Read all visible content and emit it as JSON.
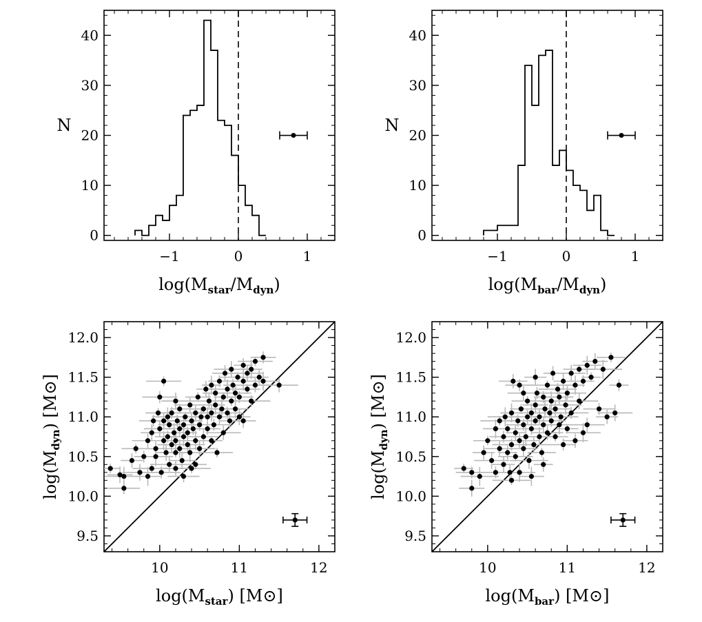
{
  "chart_data": [
    {
      "id": "hist_star",
      "type": "histogram",
      "xlabel": {
        "pre": "log(M",
        "sub1": "star",
        "mid": "/M",
        "sub2": "dyn",
        "post": ")"
      },
      "ylabel": "N",
      "xlim": [
        -1.95,
        1.4
      ],
      "ylim": [
        -1,
        45
      ],
      "xticks": [
        -1,
        0,
        1
      ],
      "xtick_labels": [
        "−1",
        "0",
        "1"
      ],
      "yticks": [
        0,
        10,
        20,
        30,
        40
      ],
      "ytick_labels": [
        "0",
        "10",
        "20",
        "30",
        "40"
      ],
      "bin_width": 0.1,
      "bin_edges_start": -1.5,
      "counts": [
        1,
        0,
        2,
        4,
        3,
        6,
        8,
        24,
        25,
        26,
        43,
        37,
        23,
        22,
        16,
        10,
        6,
        4,
        0
      ],
      "reference_line_x": 0,
      "errorbar": {
        "x": 0.8,
        "y": 20,
        "xerr": 0.2
      }
    },
    {
      "id": "hist_bar",
      "type": "histogram",
      "xlabel": {
        "pre": "log(M",
        "sub1": "bar",
        "mid": "/M",
        "sub2": "dyn",
        "post": ")"
      },
      "ylabel": "N",
      "xlim": [
        -1.95,
        1.4
      ],
      "ylim": [
        -1,
        45
      ],
      "xticks": [
        -1,
        0,
        1
      ],
      "xtick_labels": [
        "−1",
        "0",
        "1"
      ],
      "yticks": [
        0,
        10,
        20,
        30,
        40
      ],
      "ytick_labels": [
        "0",
        "10",
        "20",
        "30",
        "40"
      ],
      "bin_width": 0.1,
      "bin_edges_start": -1.2,
      "counts": [
        1,
        1,
        2,
        2,
        2,
        14,
        34,
        26,
        36,
        37,
        14,
        17,
        13,
        10,
        9,
        5,
        8,
        1,
        0
      ],
      "reference_line_x": 0,
      "errorbar": {
        "x": 0.8,
        "y": 20,
        "xerr": 0.2
      }
    },
    {
      "id": "scatter_star",
      "type": "scatter",
      "xlabel": {
        "pre": "log(M",
        "sub1": "star",
        "mid": ") [M",
        "post": "]"
      },
      "ylabel": {
        "pre": "log(M",
        "sub1": "dyn",
        "mid": ") [M",
        "post": "]"
      },
      "xlim": [
        9.3,
        12.2
      ],
      "ylim": [
        9.3,
        12.2
      ],
      "xticks": [
        10,
        11,
        12
      ],
      "xtick_labels": [
        "10",
        "11",
        "12"
      ],
      "yticks": [
        9.5,
        10.0,
        10.5,
        11.0,
        11.5,
        12.0
      ],
      "ytick_labels": [
        "9.5",
        "10.0",
        "10.5",
        "11.0",
        "11.5",
        "12.0"
      ],
      "one_to_one_line": true,
      "errorbar_sample": {
        "x": 11.7,
        "y": 9.7,
        "xerr": 0.15,
        "yerr": 0.08
      },
      "points": [
        [
          9.38,
          10.35
        ],
        [
          9.5,
          10.27
        ],
        [
          9.55,
          10.1
        ],
        [
          9.55,
          10.25
        ],
        [
          9.65,
          10.45
        ],
        [
          9.7,
          10.6
        ],
        [
          9.75,
          10.3
        ],
        [
          9.8,
          10.5
        ],
        [
          9.85,
          10.25
        ],
        [
          9.85,
          10.7
        ],
        [
          9.9,
          10.35
        ],
        [
          9.9,
          10.8
        ],
        [
          9.92,
          10.95
        ],
        [
          9.95,
          10.5
        ],
        [
          9.95,
          10.6
        ],
        [
          9.98,
          11.05
        ],
        [
          10.0,
          10.85
        ],
        [
          10.02,
          10.3
        ],
        [
          10.05,
          10.7
        ],
        [
          10.05,
          10.95
        ],
        [
          10.05,
          11.45
        ],
        [
          10.08,
          10.55
        ],
        [
          10.1,
          10.75
        ],
        [
          10.1,
          11.0
        ],
        [
          10.12,
          10.4
        ],
        [
          10.12,
          10.9
        ],
        [
          10.15,
          10.65
        ],
        [
          10.15,
          11.05
        ],
        [
          10.18,
          10.8
        ],
        [
          10.2,
          10.35
        ],
        [
          10.2,
          10.55
        ],
        [
          10.2,
          10.7
        ],
        [
          10.22,
          10.95
        ],
        [
          10.25,
          10.6
        ],
        [
          10.25,
          10.85
        ],
        [
          10.25,
          11.1
        ],
        [
          10.28,
          10.45
        ],
        [
          10.3,
          10.25
        ],
        [
          10.3,
          10.75
        ],
        [
          10.3,
          10.9
        ],
        [
          10.32,
          11.0
        ],
        [
          10.35,
          10.65
        ],
        [
          10.35,
          10.8
        ],
        [
          10.38,
          10.55
        ],
        [
          10.38,
          11.15
        ],
        [
          10.4,
          10.35
        ],
        [
          10.4,
          10.95
        ],
        [
          10.42,
          10.85
        ],
        [
          10.45,
          10.7
        ],
        [
          10.45,
          11.05
        ],
        [
          10.48,
          11.25
        ],
        [
          10.5,
          10.6
        ],
        [
          10.5,
          10.9
        ],
        [
          10.52,
          11.0
        ],
        [
          10.55,
          10.75
        ],
        [
          10.55,
          11.1
        ],
        [
          10.58,
          11.35
        ],
        [
          10.6,
          10.85
        ],
        [
          10.6,
          11.0
        ],
        [
          10.62,
          11.2
        ],
        [
          10.65,
          10.7
        ],
        [
          10.65,
          11.05
        ],
        [
          10.68,
          10.9
        ],
        [
          10.7,
          11.15
        ],
        [
          10.7,
          11.3
        ],
        [
          10.72,
          10.55
        ],
        [
          10.75,
          11.0
        ],
        [
          10.75,
          11.45
        ],
        [
          10.78,
          11.1
        ],
        [
          10.8,
          10.8
        ],
        [
          10.8,
          11.25
        ],
        [
          10.82,
          11.55
        ],
        [
          10.85,
          11.05
        ],
        [
          10.85,
          11.35
        ],
        [
          10.88,
          10.95
        ],
        [
          10.9,
          11.2
        ],
        [
          10.9,
          11.6
        ],
        [
          10.92,
          11.4
        ],
        [
          10.95,
          11.1
        ],
        [
          10.95,
          11.3
        ],
        [
          10.98,
          11.5
        ],
        [
          11.0,
          11.0
        ],
        [
          11.0,
          11.25
        ],
        [
          11.05,
          11.45
        ],
        [
          11.05,
          11.65
        ],
        [
          11.1,
          11.35
        ],
        [
          11.1,
          11.55
        ],
        [
          11.15,
          11.2
        ],
        [
          11.15,
          11.6
        ],
        [
          11.2,
          11.4
        ],
        [
          11.2,
          11.7
        ],
        [
          11.25,
          11.5
        ],
        [
          11.3,
          11.75
        ],
        [
          11.3,
          11.45
        ],
        [
          11.5,
          11.4
        ],
        [
          10.45,
          10.4
        ],
        [
          10.2,
          11.2
        ],
        [
          10.0,
          11.25
        ],
        [
          10.65,
          11.4
        ],
        [
          11.05,
          10.95
        ]
      ]
    },
    {
      "id": "scatter_bar",
      "type": "scatter",
      "xlabel": {
        "pre": "log(M",
        "sub1": "bar",
        "mid": ") [M",
        "post": "]"
      },
      "ylabel": {
        "pre": "log(M",
        "sub1": "dyn",
        "mid": ") [M",
        "post": "]"
      },
      "xlim": [
        9.3,
        12.2
      ],
      "ylim": [
        9.3,
        12.2
      ],
      "xticks": [
        10,
        11,
        12
      ],
      "xtick_labels": [
        "10",
        "11",
        "12"
      ],
      "yticks": [
        9.5,
        10.0,
        10.5,
        11.0,
        11.5,
        12.0
      ],
      "ytick_labels": [
        "9.5",
        "10.0",
        "10.5",
        "11.0",
        "11.5",
        "12.0"
      ],
      "one_to_one_line": true,
      "errorbar_sample": {
        "x": 11.7,
        "y": 9.7,
        "xerr": 0.15,
        "yerr": 0.08
      },
      "points": [
        [
          9.7,
          10.35
        ],
        [
          9.8,
          10.1
        ],
        [
          9.8,
          10.3
        ],
        [
          9.9,
          10.25
        ],
        [
          9.95,
          10.55
        ],
        [
          10.0,
          10.7
        ],
        [
          10.05,
          10.45
        ],
        [
          10.1,
          10.3
        ],
        [
          10.1,
          10.85
        ],
        [
          10.15,
          10.6
        ],
        [
          10.15,
          10.95
        ],
        [
          10.2,
          10.4
        ],
        [
          10.2,
          10.75
        ],
        [
          10.22,
          11.0
        ],
        [
          10.25,
          10.55
        ],
        [
          10.25,
          10.85
        ],
        [
          10.28,
          10.3
        ],
        [
          10.3,
          10.65
        ],
        [
          10.3,
          11.05
        ],
        [
          10.32,
          11.45
        ],
        [
          10.35,
          10.5
        ],
        [
          10.35,
          10.8
        ],
        [
          10.38,
          10.95
        ],
        [
          10.4,
          10.3
        ],
        [
          10.4,
          10.7
        ],
        [
          10.42,
          11.1
        ],
        [
          10.45,
          10.6
        ],
        [
          10.45,
          10.9
        ],
        [
          10.48,
          10.75
        ],
        [
          10.5,
          11.0
        ],
        [
          10.5,
          11.2
        ],
        [
          10.52,
          10.45
        ],
        [
          10.55,
          10.85
        ],
        [
          10.55,
          11.05
        ],
        [
          10.58,
          10.65
        ],
        [
          10.6,
          10.95
        ],
        [
          10.6,
          11.15
        ],
        [
          10.62,
          11.3
        ],
        [
          10.65,
          10.75
        ],
        [
          10.65,
          11.0
        ],
        [
          10.68,
          10.55
        ],
        [
          10.7,
          10.9
        ],
        [
          10.7,
          11.25
        ],
        [
          10.72,
          11.1
        ],
        [
          10.75,
          10.8
        ],
        [
          10.75,
          11.4
        ],
        [
          10.78,
          11.05
        ],
        [
          10.8,
          10.95
        ],
        [
          10.8,
          11.2
        ],
        [
          10.82,
          11.55
        ],
        [
          10.85,
          10.75
        ],
        [
          10.85,
          11.1
        ],
        [
          10.88,
          11.35
        ],
        [
          10.9,
          10.9
        ],
        [
          10.9,
          11.25
        ],
        [
          10.92,
          11.0
        ],
        [
          10.95,
          11.45
        ],
        [
          10.95,
          10.65
        ],
        [
          10.98,
          11.15
        ],
        [
          11.0,
          11.3
        ],
        [
          11.0,
          10.85
        ],
        [
          11.05,
          11.55
        ],
        [
          11.05,
          11.05
        ],
        [
          11.1,
          11.4
        ],
        [
          11.1,
          10.7
        ],
        [
          11.15,
          11.6
        ],
        [
          11.15,
          11.2
        ],
        [
          11.2,
          11.45
        ],
        [
          11.25,
          11.65
        ],
        [
          11.25,
          10.9
        ],
        [
          11.3,
          11.5
        ],
        [
          11.35,
          11.7
        ],
        [
          11.4,
          11.1
        ],
        [
          11.45,
          11.6
        ],
        [
          11.5,
          11.0
        ],
        [
          11.55,
          11.75
        ],
        [
          11.6,
          11.05
        ],
        [
          11.65,
          11.4
        ],
        [
          10.55,
          10.25
        ],
        [
          10.45,
          11.3
        ],
        [
          10.3,
          10.2
        ],
        [
          10.6,
          11.5
        ],
        [
          10.4,
          11.4
        ],
        [
          11.2,
          10.8
        ],
        [
          10.7,
          10.4
        ]
      ]
    }
  ]
}
